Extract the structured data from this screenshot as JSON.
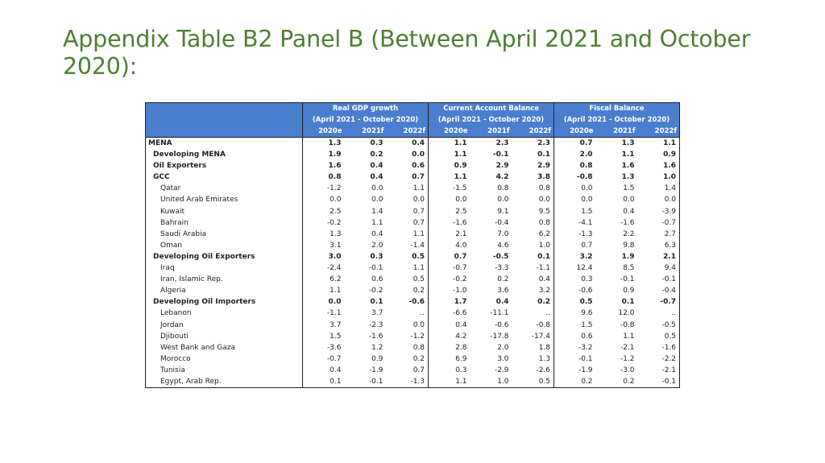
{
  "slide": {
    "title": "Appendix Table B2 Panel B (Between April 2021 and October 2020):"
  },
  "table": {
    "groups": [
      {
        "title": "Real GDP growth",
        "subtitle": "(April 2021 - October 2020)"
      },
      {
        "title": "Current Account Balance",
        "subtitle": "(April 2021 - October 2020)"
      },
      {
        "title": "Fiscal Balance",
        "subtitle": "(April 2021 - October 2020)"
      }
    ],
    "years": [
      "2020e",
      "2021f",
      "2022f",
      "2020e",
      "2021f",
      "2022f",
      "2020e",
      "2021f",
      "2022f"
    ],
    "rows": [
      {
        "name": "MENA",
        "bold": true,
        "indent": 0,
        "v": [
          "1.3",
          "0.3",
          "0.4",
          "1.1",
          "2.3",
          "2.3",
          "0.7",
          "1.3",
          "1.1"
        ]
      },
      {
        "name": "Developing MENA",
        "bold": true,
        "indent": 1,
        "v": [
          "1.9",
          "0.2",
          "0.0",
          "1.1",
          "-0.1",
          "0.1",
          "2.0",
          "1.1",
          "0.9"
        ]
      },
      {
        "name": "Oil Exporters",
        "bold": true,
        "indent": 1,
        "v": [
          "1.6",
          "0.4",
          "0.6",
          "0.9",
          "2.9",
          "2.9",
          "0.8",
          "1.6",
          "1.6"
        ]
      },
      {
        "name": "GCC",
        "bold": true,
        "indent": 1,
        "v": [
          "0.8",
          "0.4",
          "0.7",
          "1.1",
          "4.2",
          "3.8",
          "-0.8",
          "1.3",
          "1.0"
        ]
      },
      {
        "name": "Qatar",
        "bold": false,
        "indent": 2,
        "v": [
          "-1.2",
          "0.0",
          "1.1",
          "-1.5",
          "0.8",
          "0.8",
          "0.0",
          "1.5",
          "1.4"
        ]
      },
      {
        "name": "United Arab Emirates",
        "bold": false,
        "indent": 2,
        "v": [
          "0.0",
          "0.0",
          "0.0",
          "0.0",
          "0.0",
          "0.0",
          "0.0",
          "0.0",
          "0.0"
        ]
      },
      {
        "name": "Kuwait",
        "bold": false,
        "indent": 2,
        "v": [
          "2.5",
          "1.4",
          "0.7",
          "2.5",
          "9.1",
          "9.5",
          "1.5",
          "0.4",
          "-3.9"
        ]
      },
      {
        "name": "Bahrain",
        "bold": false,
        "indent": 2,
        "v": [
          "-0.2",
          "1.1",
          "0.7",
          "-1.6",
          "-0.4",
          "0.8",
          "-4.1",
          "-1.6",
          "-0.7"
        ]
      },
      {
        "name": "Saudi Arabia",
        "bold": false,
        "indent": 2,
        "v": [
          "1.3",
          "0.4",
          "1.1",
          "2.1",
          "7.0",
          "6.2",
          "-1.3",
          "2.2",
          "2.7"
        ]
      },
      {
        "name": "Oman",
        "bold": false,
        "indent": 2,
        "v": [
          "3.1",
          "2.0",
          "-1.4",
          "4.0",
          "4.6",
          "1.0",
          "0.7",
          "9.8",
          "6.3"
        ]
      },
      {
        "name": "Developing Oil Exporters",
        "bold": true,
        "indent": 1,
        "v": [
          "3.0",
          "0.3",
          "0.5",
          "0.7",
          "-0.5",
          "0.1",
          "3.2",
          "1.9",
          "2.1"
        ]
      },
      {
        "name": "Iraq",
        "bold": false,
        "indent": 2,
        "v": [
          "-2.4",
          "-0.1",
          "1.1",
          "-0.7",
          "-3.3",
          "-1.1",
          "12.4",
          "8.5",
          "9.4"
        ]
      },
      {
        "name": "Iran, Islamic Rep.",
        "bold": false,
        "indent": 2,
        "v": [
          "6.2",
          "0.6",
          "0.5",
          "-0.2",
          "0.2",
          "0.4",
          "0.3",
          "-0.1",
          "-0.1"
        ]
      },
      {
        "name": "Algeria",
        "bold": false,
        "indent": 2,
        "v": [
          "1.1",
          "-0.2",
          "0.2",
          "-1.0",
          "3.6",
          "3.2",
          "-0.6",
          "0.9",
          "-0.4"
        ]
      },
      {
        "name": "Developing Oil Importers",
        "bold": true,
        "indent": 1,
        "v": [
          "0.0",
          "0.1",
          "-0.6",
          "1.7",
          "0.4",
          "0.2",
          "0.5",
          "0.1",
          "-0.7"
        ]
      },
      {
        "name": "Lebanon",
        "bold": false,
        "indent": 2,
        "v": [
          "-1.1",
          "3.7",
          "..",
          "-6.6",
          "-11.1",
          "..",
          "9.6",
          "12.0",
          ".."
        ]
      },
      {
        "name": "Jordan",
        "bold": false,
        "indent": 2,
        "v": [
          "3.7",
          "-2.3",
          "0.0",
          "0.4",
          "-0.6",
          "-0.8",
          "1.5",
          "-0.8",
          "-0.5"
        ]
      },
      {
        "name": "Djibouti",
        "bold": false,
        "indent": 2,
        "v": [
          "1.5",
          "-1.6",
          "-1.2",
          "4.2",
          "-17.8",
          "-17.4",
          "0.6",
          "1.1",
          "0.5"
        ]
      },
      {
        "name": "West Bank and Gaza",
        "bold": false,
        "indent": 2,
        "v": [
          "-3.6",
          "1.2",
          "0.8",
          "2.8",
          "2.0",
          "1.8",
          "-3.2",
          "-2.1",
          "-1.6"
        ]
      },
      {
        "name": "Morocco",
        "bold": false,
        "indent": 2,
        "v": [
          "-0.7",
          "0.9",
          "0.2",
          "6.9",
          "3.0",
          "1.3",
          "-0.1",
          "-1.2",
          "-2.2"
        ]
      },
      {
        "name": "Tunisia",
        "bold": false,
        "indent": 2,
        "v": [
          "0.4",
          "-1.9",
          "0.7",
          "0.3",
          "-2.9",
          "-2.6",
          "-1.9",
          "-3.0",
          "-2.1"
        ]
      },
      {
        "name": "Egypt, Arab Rep.",
        "bold": false,
        "indent": 2,
        "v": [
          "0.1",
          "-0.1",
          "-1.3",
          "1.1",
          "1.0",
          "0.5",
          "0.2",
          "0.2",
          "-0.1"
        ]
      }
    ]
  }
}
